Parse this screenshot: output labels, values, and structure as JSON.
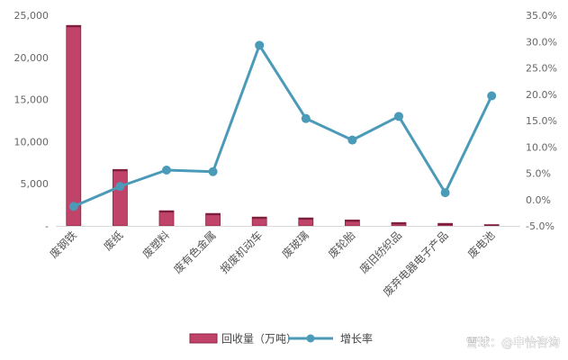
{
  "chart_data": {
    "type": "bar",
    "categories": [
      "废钢铁",
      "废纸",
      "废塑料",
      "废有色金属",
      "报废机动车",
      "废玻璃",
      "废轮胎",
      "废旧纺织品",
      "废弃电器电子产品",
      "废电池"
    ],
    "series": [
      {
        "name": "回收量（万吨）",
        "type": "bar",
        "axis": "left",
        "color": "#c0446a",
        "values": [
          23800,
          6700,
          1800,
          1480,
          1050,
          950,
          700,
          400,
          300,
          150
        ]
      },
      {
        "name": "增长率",
        "type": "line",
        "axis": "right",
        "color": "#4a9ab8",
        "values": [
          -1.3,
          2.5,
          5.6,
          5.3,
          29.3,
          15.4,
          11.3,
          15.8,
          1.3,
          19.7
        ]
      }
    ],
    "y_left": {
      "ylim": [
        0,
        25000
      ],
      "ticks": [
        0,
        5000,
        10000,
        15000,
        20000,
        25000
      ],
      "tick_labels": [
        "-",
        "5,000",
        "10,000",
        "15,000",
        "20,000",
        "25,000"
      ]
    },
    "y_right": {
      "ylim": [
        -5,
        35
      ],
      "ticks": [
        -5,
        0,
        5,
        10,
        15,
        20,
        25,
        30,
        35
      ],
      "tick_labels": [
        "-5.0%",
        "0.0%",
        "5.0%",
        "10.0%",
        "15.0%",
        "20.0%",
        "25.0%",
        "30.0%",
        "35.0%"
      ]
    },
    "grid": false,
    "legend_position": "bottom-center",
    "title": "",
    "xlabel": "",
    "ylabel": ""
  },
  "watermark": "雪球：@中怡咨询"
}
